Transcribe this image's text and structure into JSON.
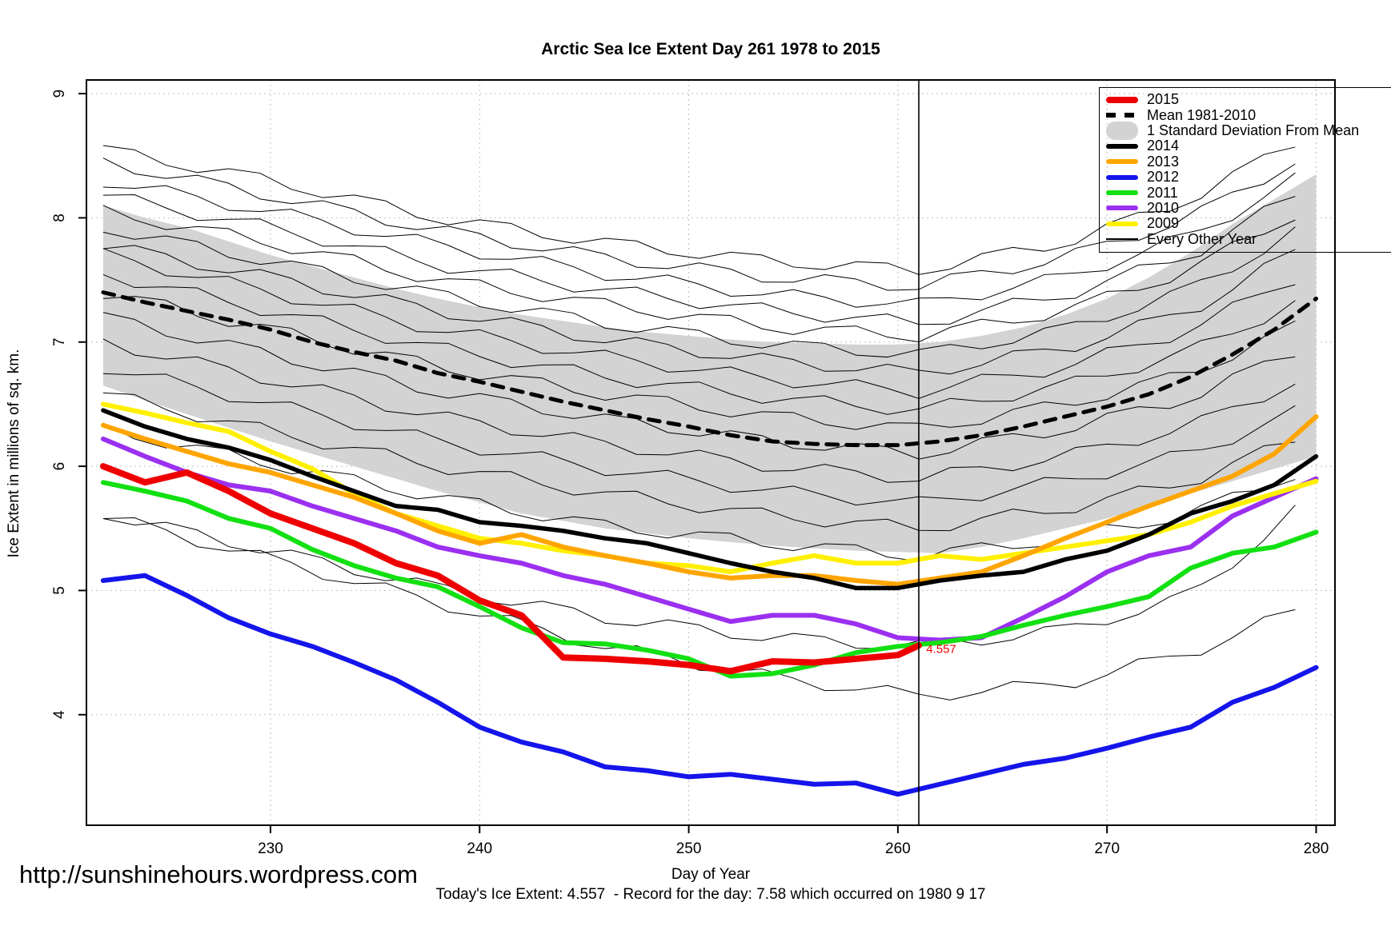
{
  "page": {
    "title": "Arctic Sea Ice Extent Day 261 1978 to 2015",
    "url_watermark": "http://sunshinehours.wordpress.com",
    "caption": "Today's Ice Extent: 4.557  - Record for the day: 7.58 which occurred on 1980 9 17"
  },
  "chart_data": {
    "type": "line",
    "title": "Arctic Sea Ice Extent Day 261 1978 to 2015",
    "xlabel": "Day of Year",
    "ylabel": "Ice Extent in millions of sq. km.",
    "x_ticks": [
      230,
      240,
      250,
      260,
      270,
      280
    ],
    "y_ticks": [
      4,
      5,
      6,
      7,
      8,
      9
    ],
    "xlim": [
      221.2,
      280.9
    ],
    "ylim": [
      3.11,
      9.11
    ],
    "grid": true,
    "vline_day": 261,
    "annotation": {
      "text": "4.557",
      "day": 261.2,
      "value": 4.53,
      "color": "#EE0000"
    },
    "days": [
      222,
      224,
      226,
      228,
      230,
      232,
      234,
      236,
      238,
      240,
      242,
      244,
      246,
      248,
      250,
      252,
      254,
      256,
      258,
      260,
      262,
      264,
      266,
      268,
      270,
      272,
      274,
      276,
      278,
      280
    ],
    "band": {
      "label": "1 Standard Deviation From Mean",
      "color": "#D3D3D3",
      "top": [
        8.1,
        8.0,
        7.92,
        7.81,
        7.7,
        7.61,
        7.52,
        7.43,
        7.35,
        7.28,
        7.22,
        7.17,
        7.12,
        7.08,
        7.05,
        7.02,
        7.0,
        6.99,
        6.98,
        6.98,
        7.0,
        7.05,
        7.12,
        7.22,
        7.35,
        7.52,
        7.72,
        7.95,
        8.15,
        8.35
      ],
      "bottom": [
        6.65,
        6.53,
        6.42,
        6.31,
        6.2,
        6.1,
        6.0,
        5.9,
        5.8,
        5.71,
        5.62,
        5.56,
        5.5,
        5.46,
        5.42,
        5.39,
        5.36,
        5.34,
        5.32,
        5.31,
        5.3,
        5.35,
        5.42,
        5.5,
        5.58,
        5.68,
        5.78,
        5.88,
        5.98,
        6.08
      ]
    },
    "series": [
      {
        "name": "Mean 1981-2010",
        "color": "#000000",
        "width": 5,
        "dash": "14 11",
        "values": [
          7.4,
          7.32,
          7.25,
          7.18,
          7.1,
          7.0,
          6.92,
          6.85,
          6.75,
          6.68,
          6.6,
          6.52,
          6.45,
          6.38,
          6.32,
          6.25,
          6.2,
          6.18,
          6.17,
          6.17,
          6.2,
          6.25,
          6.32,
          6.4,
          6.48,
          6.58,
          6.72,
          6.9,
          7.1,
          7.35
        ]
      },
      {
        "name": "2012",
        "color": "#1414EB",
        "width": 6,
        "values": [
          5.08,
          5.12,
          4.96,
          4.78,
          4.65,
          4.55,
          4.42,
          4.28,
          4.1,
          3.9,
          3.78,
          3.7,
          3.58,
          3.55,
          3.5,
          3.52,
          3.48,
          3.44,
          3.45,
          3.36,
          3.44,
          3.52,
          3.6,
          3.65,
          3.73,
          3.82,
          3.9,
          4.1,
          4.22,
          4.38
        ]
      },
      {
        "name": "2010",
        "color": "#9B30F0",
        "width": 6,
        "values": [
          6.22,
          6.08,
          5.95,
          5.85,
          5.8,
          5.68,
          5.58,
          5.48,
          5.35,
          5.28,
          5.22,
          5.12,
          5.05,
          4.95,
          4.85,
          4.75,
          4.8,
          4.8,
          4.73,
          4.62,
          4.6,
          4.62,
          4.78,
          4.95,
          5.15,
          5.28,
          5.35,
          5.6,
          5.75,
          5.9
        ]
      },
      {
        "name": "2009",
        "color": "#FFF000",
        "width": 6,
        "values": [
          6.5,
          6.43,
          6.35,
          6.28,
          6.12,
          5.98,
          5.78,
          5.62,
          5.52,
          5.42,
          5.38,
          5.32,
          5.28,
          5.22,
          5.2,
          5.15,
          5.22,
          5.28,
          5.22,
          5.22,
          5.28,
          5.25,
          5.3,
          5.35,
          5.4,
          5.45,
          5.55,
          5.68,
          5.78,
          5.88
        ]
      },
      {
        "name": "2013",
        "color": "#FFA500",
        "width": 6,
        "values": [
          6.33,
          6.22,
          6.12,
          6.02,
          5.95,
          5.85,
          5.75,
          5.62,
          5.48,
          5.38,
          5.45,
          5.35,
          5.28,
          5.22,
          5.15,
          5.1,
          5.12,
          5.12,
          5.08,
          5.05,
          5.1,
          5.15,
          5.28,
          5.42,
          5.55,
          5.68,
          5.8,
          5.92,
          6.1,
          6.4
        ]
      },
      {
        "name": "2014",
        "color": "#000000",
        "width": 5.5,
        "values": [
          6.45,
          6.32,
          6.22,
          6.15,
          6.05,
          5.92,
          5.8,
          5.68,
          5.65,
          5.55,
          5.52,
          5.48,
          5.42,
          5.38,
          5.3,
          5.22,
          5.15,
          5.1,
          5.02,
          5.02,
          5.08,
          5.12,
          5.15,
          5.25,
          5.32,
          5.45,
          5.62,
          5.72,
          5.85,
          6.08
        ]
      },
      {
        "name": "2011",
        "color": "#12E012",
        "width": 6,
        "values": [
          5.87,
          5.8,
          5.72,
          5.58,
          5.5,
          5.33,
          5.2,
          5.1,
          5.03,
          4.87,
          4.7,
          4.58,
          4.57,
          4.52,
          4.45,
          4.31,
          4.33,
          4.4,
          4.5,
          4.55,
          4.58,
          4.63,
          4.72,
          4.8,
          4.87,
          4.95,
          5.18,
          5.3,
          5.35,
          5.47
        ]
      },
      {
        "name": "2015",
        "color": "#EE0000",
        "width": 8,
        "days": [
          222,
          224,
          226,
          228,
          230,
          232,
          234,
          236,
          238,
          240,
          242,
          244,
          246,
          248,
          250,
          252,
          254,
          256,
          258,
          260,
          261
        ],
        "values": [
          6.0,
          5.87,
          5.95,
          5.8,
          5.62,
          5.5,
          5.38,
          5.22,
          5.12,
          4.92,
          4.8,
          4.46,
          4.45,
          4.43,
          4.4,
          4.35,
          4.43,
          4.42,
          4.45,
          4.48,
          4.557
        ]
      }
    ],
    "background_years": {
      "label": "Every Other Year",
      "control_days": [
        222,
        230,
        238,
        246,
        254,
        261,
        268,
        274,
        280
      ],
      "lines": [
        [
          8.55,
          8.3,
          8.0,
          7.8,
          7.65,
          7.58,
          7.8,
          8.15,
          8.7
        ],
        [
          8.45,
          8.18,
          7.9,
          7.68,
          7.52,
          7.45,
          7.68,
          8.0,
          8.55
        ],
        [
          8.3,
          8.05,
          7.78,
          7.55,
          7.38,
          7.3,
          7.52,
          7.85,
          8.4
        ],
        [
          8.18,
          7.92,
          7.62,
          7.42,
          7.25,
          7.15,
          7.38,
          7.7,
          8.28
        ],
        [
          8.05,
          7.8,
          7.5,
          7.3,
          7.12,
          7.05,
          7.25,
          7.58,
          8.12
        ],
        [
          7.92,
          7.65,
          7.38,
          7.15,
          6.98,
          6.9,
          7.1,
          7.42,
          7.98
        ],
        [
          7.78,
          7.52,
          7.25,
          7.02,
          6.85,
          6.75,
          6.95,
          7.25,
          7.82
        ],
        [
          7.7,
          7.4,
          7.1,
          6.88,
          6.7,
          6.6,
          6.8,
          7.1,
          7.6
        ],
        [
          7.55,
          7.25,
          6.95,
          6.72,
          6.55,
          6.45,
          6.65,
          6.92,
          7.4
        ],
        [
          7.4,
          7.1,
          6.8,
          6.58,
          6.4,
          6.3,
          6.5,
          6.75,
          7.2
        ],
        [
          7.2,
          6.9,
          6.6,
          6.38,
          6.2,
          6.1,
          6.3,
          6.55,
          7.0
        ],
        [
          7.0,
          6.7,
          6.4,
          6.18,
          6.0,
          5.9,
          6.08,
          6.32,
          6.75
        ],
        [
          6.8,
          6.5,
          6.2,
          5.98,
          5.8,
          5.7,
          5.88,
          6.1,
          6.5
        ],
        [
          6.58,
          6.28,
          6.0,
          5.78,
          5.6,
          5.5,
          5.66,
          5.88,
          6.28
        ],
        [
          6.3,
          6.02,
          5.75,
          5.52,
          5.38,
          5.28,
          5.42,
          5.62,
          6.0
        ],
        [
          5.62,
          5.32,
          5.02,
          4.78,
          4.62,
          4.55,
          4.68,
          4.95,
          5.78
        ],
        [
          5.6,
          5.25,
          4.9,
          4.55,
          4.3,
          4.15,
          4.25,
          4.5,
          4.9
        ]
      ]
    },
    "legend": [
      {
        "label": "2015",
        "swatch": "thick",
        "color": "#EE0000"
      },
      {
        "label": "Mean 1981-2010",
        "swatch": "dashed",
        "color": "#000000"
      },
      {
        "label": "1 Standard Deviation From Mean",
        "swatch": "band",
        "color": "#D3D3D3"
      },
      {
        "label": "2014",
        "swatch": "line",
        "color": "#000000"
      },
      {
        "label": "2013",
        "swatch": "line",
        "color": "#FFA500"
      },
      {
        "label": "2012",
        "swatch": "line",
        "color": "#1414EB"
      },
      {
        "label": "2011",
        "swatch": "line",
        "color": "#12E012"
      },
      {
        "label": "2010",
        "swatch": "line",
        "color": "#9B30F0"
      },
      {
        "label": "2009",
        "swatch": "line",
        "color": "#FFF000"
      },
      {
        "label": "Every Other Year",
        "swatch": "thin",
        "color": "#000000"
      }
    ],
    "grid_color": "#BFBFBF"
  }
}
